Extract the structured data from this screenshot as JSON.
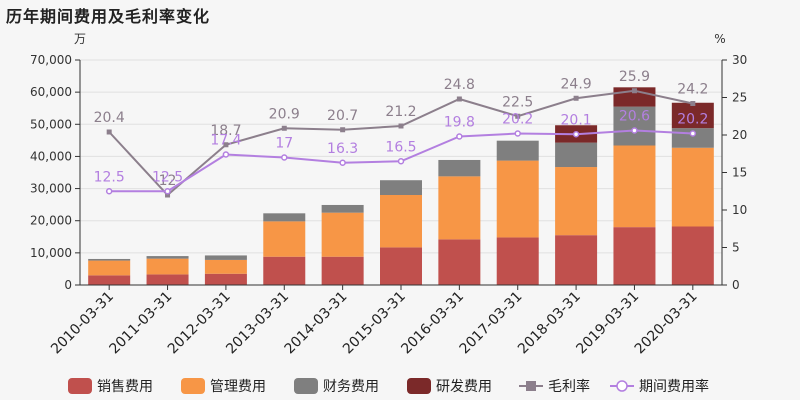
{
  "title": "历年期间费用及毛利率变化",
  "chart_data": {
    "type": "bar",
    "stacked": true,
    "categories": [
      "2010-03-31",
      "2011-03-31",
      "2012-03-31",
      "2013-03-31",
      "2014-03-31",
      "2015-03-31",
      "2016-03-31",
      "2017-03-31",
      "2018-03-31",
      "2019-03-31",
      "2020-03-31"
    ],
    "left_unit": "万",
    "right_unit": "%",
    "ylim_left": [
      0,
      70000
    ],
    "ylim_right": [
      0,
      30
    ],
    "left_ticks": [
      "0",
      "10,000",
      "20,000",
      "30,000",
      "40,000",
      "50,000",
      "60,000",
      "70,000"
    ],
    "right_ticks": [
      "0",
      "5",
      "10",
      "15",
      "20",
      "25",
      "30"
    ],
    "grid": true,
    "legend_position": "bottom",
    "bar_series": [
      {
        "name": "销售费用",
        "color": "#c0504d",
        "values": [
          3000,
          3300,
          3500,
          8800,
          8800,
          11700,
          14200,
          14800,
          15500,
          18000,
          18200
        ]
      },
      {
        "name": "管理费用",
        "color": "#f79646",
        "values": [
          4600,
          4900,
          4300,
          11000,
          13700,
          16300,
          19600,
          23900,
          21200,
          25400,
          24500
        ]
      },
      {
        "name": "财务费用",
        "color": "#7f7f7f",
        "values": [
          500,
          800,
          1400,
          2500,
          2400,
          4600,
          5100,
          6200,
          7600,
          12100,
          6100
        ]
      },
      {
        "name": "研发费用",
        "color": "#7b2929",
        "values": [
          0,
          0,
          0,
          0,
          0,
          0,
          0,
          0,
          5400,
          6000,
          7900
        ]
      }
    ],
    "line_series": [
      {
        "name": "毛利率",
        "color": "#8c7f8c",
        "marker": "square",
        "values": [
          20.4,
          12,
          18.7,
          20.9,
          20.7,
          21.2,
          24.8,
          22.5,
          24.9,
          25.9,
          24.2
        ],
        "labels": [
          "20.4",
          "12",
          "18.7",
          "20.9",
          "20.7",
          "21.2",
          "24.8",
          "22.5",
          "24.9",
          "25.9",
          "24.2"
        ]
      },
      {
        "name": "期间费用率",
        "color": "#b37fe0",
        "marker": "circle",
        "values": [
          12.5,
          12.5,
          17.4,
          17,
          16.3,
          16.5,
          19.8,
          20.2,
          20.1,
          20.6,
          20.2
        ],
        "labels": [
          "12.5",
          "12.5",
          "17.4",
          "17",
          "16.3",
          "16.5",
          "19.8",
          "20.2",
          "20.1",
          "20.6",
          "20.2"
        ]
      }
    ]
  }
}
